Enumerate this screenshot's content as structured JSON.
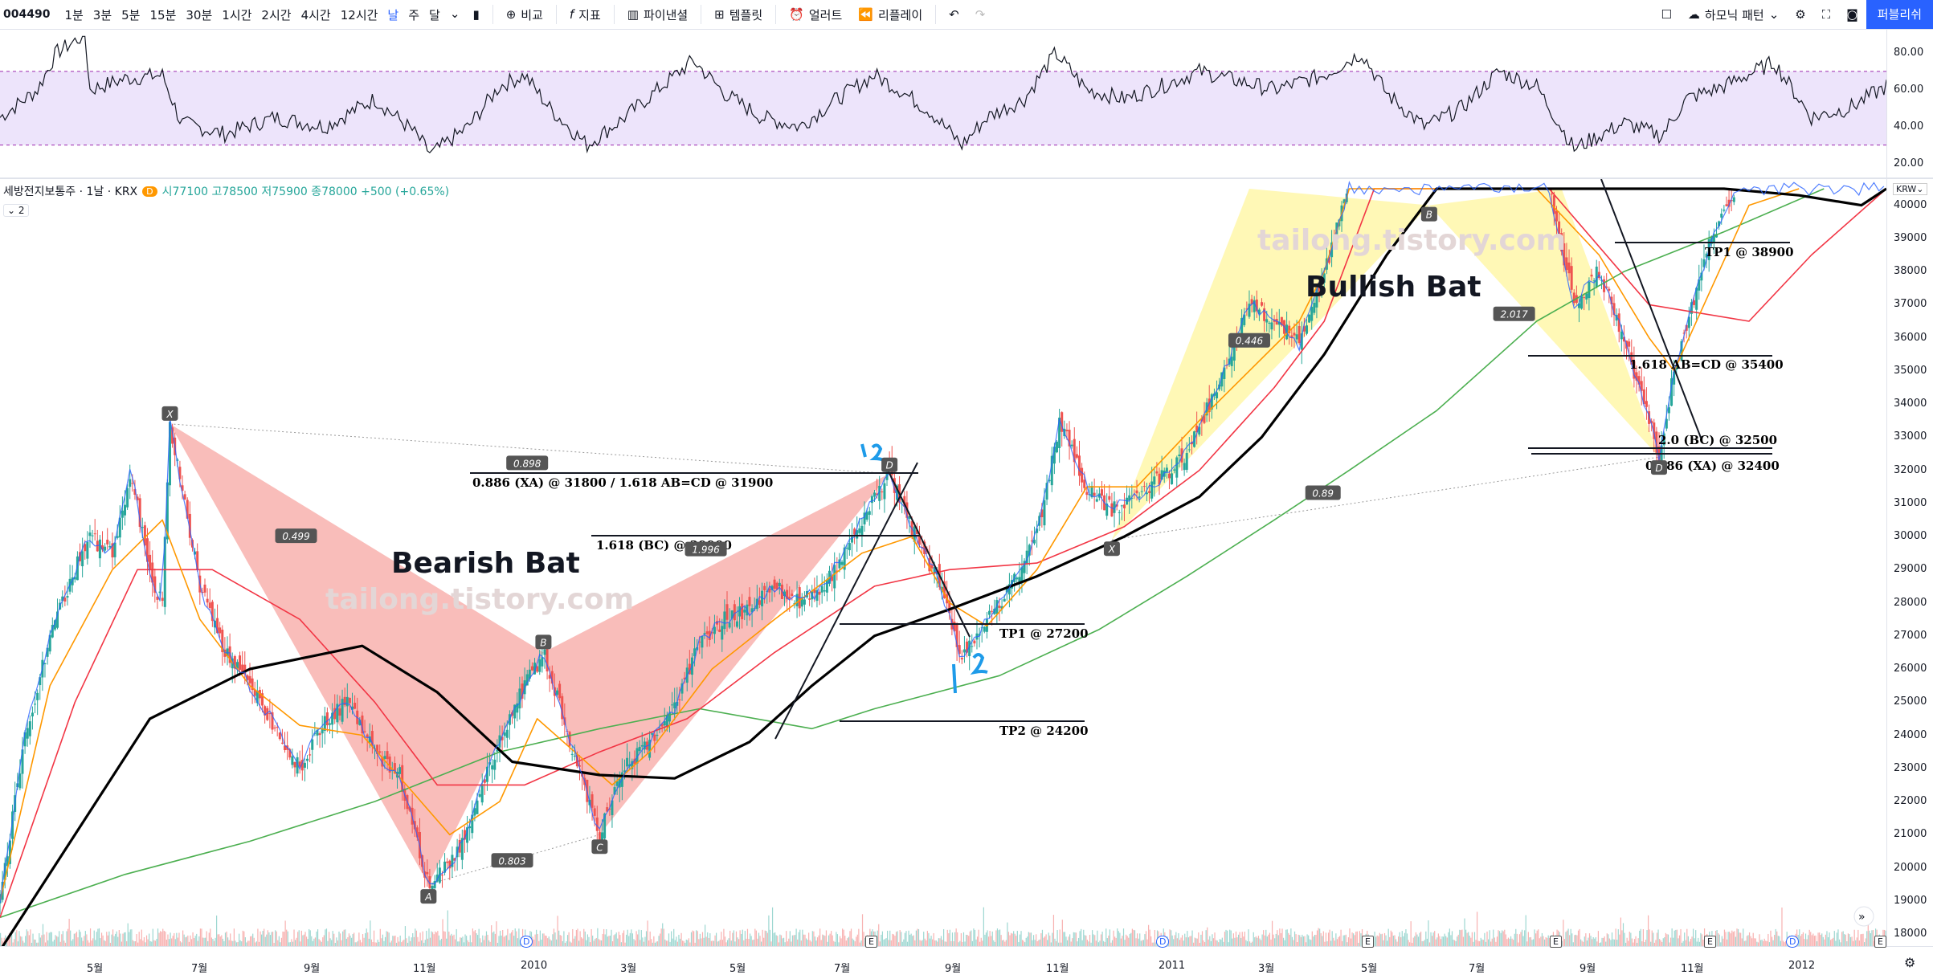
{
  "toolbar": {
    "symbol": "004490",
    "intervals": [
      "1분",
      "3분",
      "5분",
      "15분",
      "30분",
      "1시간",
      "2시간",
      "4시간",
      "12시간",
      "날",
      "주",
      "달"
    ],
    "active_interval": "날",
    "compare": "비교",
    "indicators": "지표",
    "pine_editor": "파이낸셜",
    "templates": "템플릿",
    "alert": "얼러트",
    "replay": "리플레이",
    "harmonic": "하모닉 패턴",
    "publish": "퍼블리쉬"
  },
  "legend": {
    "title": "세방전지보통주 · 1날 · KRX",
    "badge": "D",
    "ohlc": "시77100 고78500 저75900 종78000 +500 (+0.65%)",
    "collapse": "2",
    "currency": "KRW"
  },
  "rsi_axis": [
    "80.00",
    "60.00",
    "40.00",
    "20.00"
  ],
  "price_axis": [
    "40000",
    "39000",
    "38000",
    "37000",
    "36000",
    "35000",
    "34000",
    "33000",
    "32000",
    "31000",
    "30000",
    "29000",
    "28000",
    "27000",
    "26000",
    "25000",
    "24000",
    "23000",
    "22000",
    "21000",
    "20000",
    "19000",
    "18000"
  ],
  "time_axis": [
    "5월",
    "7월",
    "9월",
    "11월",
    "2010",
    "3월",
    "5월",
    "7월",
    "9월",
    "11월",
    "2011",
    "3월",
    "5월",
    "7월",
    "9월",
    "11월",
    "2012"
  ],
  "annotations": {
    "bearish_title": "Bearish Bat",
    "bullish_title": "Bullish Bat",
    "watermark": "tailong.tistory.com",
    "bear_ratio_xab": "0.499",
    "bear_ratio_xad": "0.898",
    "bear_ratio_abc": "0.803",
    "bear_ratio_bcd": "1.996",
    "bear_level_d": "0.886 (XA) @ 31800 / 1.618 AB=CD @ 31900",
    "bear_level_bc": "1.618 (BC) @ 29900",
    "bear_tp1": "TP1 @ 27200",
    "bear_tp2": "TP2 @ 24200",
    "bull_ratio_xab": "0.446",
    "bull_ratio_bcd": "2.017",
    "bull_ratio_xad": "0.89",
    "bull_tp1": "TP1 @ 38900",
    "bull_abcd": "1.618 AB=CD @ 35400",
    "bull_bc": "2.0 (BC) @ 32500",
    "bull_xa": "0.886 (XA) @ 32400",
    "points": [
      "X",
      "A",
      "B",
      "C",
      "D"
    ]
  },
  "colors": {
    "up": "#26a69a",
    "down": "#ef5350",
    "ma_black": "#000000",
    "ma_green": "#4caf50",
    "ma_red": "#f23645",
    "ma_orange": "#ff9800",
    "ma_blue": "#2962ff",
    "bear_fill": "#f7a7a3",
    "bull_fill": "#fff59d",
    "rsi_band": "#ede4fb"
  },
  "chart_data": {
    "type": "candlestick",
    "title": "세방전지보통주 · 1날 · KRX",
    "x_range": [
      "2009-04",
      "2012-01"
    ],
    "ylim": [
      18000,
      40500
    ],
    "rsi_ylim": [
      15,
      90
    ],
    "rsi_band": [
      30,
      70
    ],
    "price_path": [
      [
        0,
        19000
      ],
      [
        20,
        24000
      ],
      [
        40,
        27000
      ],
      [
        70,
        30000
      ],
      [
        90,
        29500
      ],
      [
        105,
        32000
      ],
      [
        120,
        28800
      ],
      [
        130,
        28000
      ],
      [
        136,
        33400
      ],
      [
        160,
        28500
      ],
      [
        180,
        26500
      ],
      [
        200,
        25500
      ],
      [
        225,
        24000
      ],
      [
        240,
        23000
      ],
      [
        260,
        24500
      ],
      [
        280,
        25000
      ],
      [
        300,
        23500
      ],
      [
        320,
        22800
      ],
      [
        343,
        19500
      ],
      [
        365,
        20300
      ],
      [
        390,
        23000
      ],
      [
        420,
        25500
      ],
      [
        435,
        26500
      ],
      [
        455,
        24000
      ],
      [
        480,
        21000
      ],
      [
        500,
        23000
      ],
      [
        520,
        23800
      ],
      [
        540,
        24800
      ],
      [
        560,
        26800
      ],
      [
        580,
        27500
      ],
      [
        600,
        27800
      ],
      [
        620,
        28500
      ],
      [
        640,
        28000
      ],
      [
        660,
        28500
      ],
      [
        690,
        30500
      ],
      [
        712,
        31900
      ],
      [
        735,
        29800
      ],
      [
        750,
        28800
      ],
      [
        770,
        26300
      ],
      [
        790,
        27500
      ],
      [
        810,
        28500
      ],
      [
        830,
        30000
      ],
      [
        848,
        33500
      ],
      [
        870,
        31500
      ],
      [
        890,
        30800
      ],
      [
        910,
        31200
      ],
      [
        930,
        31800
      ],
      [
        950,
        32500
      ],
      [
        980,
        35000
      ],
      [
        1000,
        37000
      ],
      [
        1020,
        36500
      ],
      [
        1040,
        35800
      ],
      [
        1060,
        38000
      ],
      [
        1080,
        40500
      ],
      [
        1100,
        40500
      ],
      [
        1140,
        40500
      ],
      [
        1160,
        40500
      ],
      [
        1200,
        40500
      ],
      [
        1240,
        40500
      ],
      [
        1260,
        37000
      ],
      [
        1280,
        38000
      ],
      [
        1300,
        36000
      ],
      [
        1320,
        33500
      ],
      [
        1328,
        32400
      ],
      [
        1340,
        35000
      ],
      [
        1355,
        37000
      ],
      [
        1370,
        39000
      ],
      [
        1390,
        40500
      ],
      [
        1430,
        40500
      ],
      [
        1460,
        40500
      ],
      [
        1510,
        40500
      ]
    ],
    "ma_black": [
      [
        0,
        17500
      ],
      [
        60,
        21000
      ],
      [
        120,
        24500
      ],
      [
        200,
        26000
      ],
      [
        290,
        26700
      ],
      [
        350,
        25300
      ],
      [
        410,
        23200
      ],
      [
        480,
        22800
      ],
      [
        540,
        22700
      ],
      [
        600,
        23800
      ],
      [
        650,
        25500
      ],
      [
        700,
        27000
      ],
      [
        760,
        27800
      ],
      [
        830,
        28800
      ],
      [
        900,
        30000
      ],
      [
        960,
        31200
      ],
      [
        1010,
        33000
      ],
      [
        1060,
        35500
      ],
      [
        1110,
        38500
      ],
      [
        1150,
        40500
      ],
      [
        1250,
        40500
      ],
      [
        1380,
        40500
      ],
      [
        1440,
        40300
      ],
      [
        1490,
        40000
      ],
      [
        1510,
        40500
      ]
    ],
    "ma_green": [
      [
        0,
        18500
      ],
      [
        100,
        19800
      ],
      [
        200,
        20800
      ],
      [
        300,
        22000
      ],
      [
        400,
        23500
      ],
      [
        480,
        24200
      ],
      [
        560,
        24800
      ],
      [
        650,
        24200
      ],
      [
        700,
        24800
      ],
      [
        800,
        25800
      ],
      [
        880,
        27200
      ],
      [
        950,
        28800
      ],
      [
        1020,
        30500
      ],
      [
        1080,
        32000
      ],
      [
        1150,
        33800
      ],
      [
        1230,
        36500
      ],
      [
        1300,
        38000
      ],
      [
        1380,
        39200
      ],
      [
        1460,
        40500
      ]
    ],
    "ma_red": [
      [
        0,
        18500
      ],
      [
        60,
        25000
      ],
      [
        110,
        29000
      ],
      [
        170,
        29000
      ],
      [
        240,
        27500
      ],
      [
        300,
        25000
      ],
      [
        350,
        22500
      ],
      [
        420,
        22500
      ],
      [
        480,
        23500
      ],
      [
        550,
        24500
      ],
      [
        620,
        26500
      ],
      [
        700,
        28500
      ],
      [
        760,
        29000
      ],
      [
        830,
        29200
      ],
      [
        900,
        30300
      ],
      [
        960,
        32000
      ],
      [
        1020,
        34500
      ],
      [
        1060,
        36500
      ],
      [
        1100,
        40500
      ],
      [
        1240,
        40500
      ],
      [
        1320,
        37000
      ],
      [
        1400,
        36500
      ],
      [
        1450,
        38500
      ],
      [
        1510,
        40500
      ]
    ],
    "ma_orange": [
      [
        0,
        19000
      ],
      [
        40,
        25500
      ],
      [
        90,
        29000
      ],
      [
        130,
        30500
      ],
      [
        160,
        27500
      ],
      [
        200,
        25500
      ],
      [
        240,
        24300
      ],
      [
        290,
        24000
      ],
      [
        330,
        22300
      ],
      [
        360,
        21000
      ],
      [
        400,
        22000
      ],
      [
        430,
        24500
      ],
      [
        460,
        23500
      ],
      [
        490,
        22500
      ],
      [
        520,
        23500
      ],
      [
        570,
        26000
      ],
      [
        620,
        27500
      ],
      [
        690,
        29500
      ],
      [
        730,
        30000
      ],
      [
        760,
        28000
      ],
      [
        790,
        27300
      ],
      [
        830,
        29000
      ],
      [
        870,
        31500
      ],
      [
        910,
        31500
      ],
      [
        960,
        33500
      ],
      [
        1000,
        35000
      ],
      [
        1040,
        36500
      ],
      [
        1060,
        38000
      ],
      [
        1080,
        40500
      ],
      [
        1230,
        40500
      ],
      [
        1280,
        38500
      ],
      [
        1320,
        36000
      ],
      [
        1340,
        35000
      ],
      [
        1370,
        37500
      ],
      [
        1400,
        40000
      ],
      [
        1440,
        40500
      ]
    ],
    "bear_pattern": {
      "X": [
        136,
        33400
      ],
      "A": [
        343,
        19500
      ],
      "B": [
        435,
        26500
      ],
      "C": [
        480,
        21000
      ],
      "D": [
        712,
        31900
      ]
    },
    "bull_pattern": {
      "X": [
        890,
        29900
      ],
      "A": [
        1000,
        40500
      ],
      "B": [
        1144,
        40000
      ],
      "C": [
        1250,
        40500
      ],
      "D": [
        1328,
        32400
      ]
    },
    "rsi_path": [
      [
        0,
        45
      ],
      [
        30,
        60
      ],
      [
        45,
        80
      ],
      [
        68,
        90
      ],
      [
        72,
        60
      ],
      [
        100,
        66
      ],
      [
        130,
        68
      ],
      [
        145,
        42
      ],
      [
        180,
        36
      ],
      [
        220,
        45
      ],
      [
        260,
        40
      ],
      [
        300,
        55
      ],
      [
        330,
        38
      ],
      [
        345,
        25
      ],
      [
        375,
        40
      ],
      [
        400,
        62
      ],
      [
        420,
        68
      ],
      [
        440,
        50
      ],
      [
        470,
        30
      ],
      [
        500,
        45
      ],
      [
        530,
        62
      ],
      [
        555,
        76
      ],
      [
        580,
        58
      ],
      [
        610,
        45
      ],
      [
        640,
        40
      ],
      [
        670,
        55
      ],
      [
        700,
        68
      ],
      [
        720,
        60
      ],
      [
        745,
        48
      ],
      [
        770,
        30
      ],
      [
        790,
        45
      ],
      [
        820,
        55
      ],
      [
        845,
        80
      ],
      [
        870,
        60
      ],
      [
        900,
        55
      ],
      [
        930,
        62
      ],
      [
        960,
        70
      ],
      [
        990,
        65
      ],
      [
        1020,
        60
      ],
      [
        1060,
        68
      ],
      [
        1090,
        80
      ],
      [
        1110,
        58
      ],
      [
        1140,
        40
      ],
      [
        1170,
        50
      ],
      [
        1200,
        70
      ],
      [
        1230,
        62
      ],
      [
        1260,
        28
      ],
      [
        1300,
        42
      ],
      [
        1330,
        35
      ],
      [
        1350,
        55
      ],
      [
        1380,
        62
      ],
      [
        1420,
        75
      ],
      [
        1450,
        45
      ],
      [
        1480,
        50
      ],
      [
        1510,
        62
      ]
    ]
  }
}
